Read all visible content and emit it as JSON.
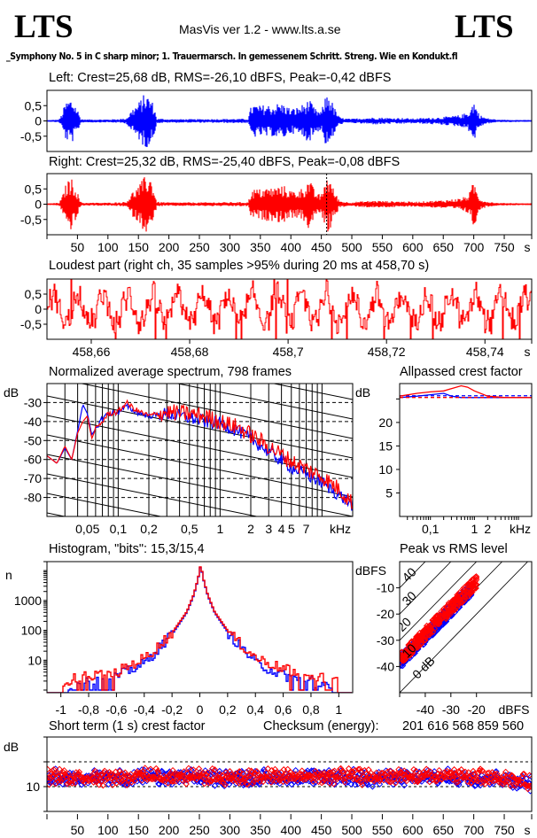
{
  "header": {
    "logo_left": "LTS",
    "logo_right": "LTS",
    "app_title": "MasVis ver 1.2 - www.lts.a.se",
    "file_name": "_Symphony No. 5 in C sharp minor; 1. Trauermarsch. In gemessenem Schritt. Streng. Wie en Kondukt.fl"
  },
  "colors": {
    "left": "#0000ff",
    "right": "#ff0000",
    "frame": "#000000",
    "background": "#ffffff"
  },
  "chart_data": [
    {
      "id": "left-waveform",
      "type": "line",
      "title": "Left: Crest=25,68 dB, RMS=-26,10 dBFS, Peak=-0,42 dBFS",
      "series": [
        {
          "name": "Left",
          "color": "#0000ff",
          "envelope": {
            "x": [
              0,
              20,
              25,
              30,
              35,
              40,
              45,
              50,
              55,
              60,
              100,
              130,
              140,
              150,
              160,
              165,
              170,
              175,
              180,
              200,
              250,
              300,
              330,
              335,
              340,
              350,
              360,
              370,
              380,
              390,
              400,
              410,
              420,
              430,
              440,
              450,
              455,
              460,
              465,
              470,
              475,
              480,
              490,
              500,
              520,
              540,
              560,
              580,
              600,
              640,
              660,
              680,
              690,
              695,
              700,
              705,
              710,
              720,
              740,
              760,
              780,
              795
            ],
            "amp": [
              0.02,
              0.05,
              0.25,
              0.6,
              0.7,
              0.75,
              0.6,
              0.4,
              0.08,
              0.05,
              0.05,
              0.08,
              0.4,
              0.6,
              0.9,
              0.85,
              0.75,
              0.55,
              0.08,
              0.06,
              0.06,
              0.07,
              0.07,
              0.5,
              0.55,
              0.5,
              0.55,
              0.5,
              0.6,
              0.55,
              0.4,
              0.45,
              0.55,
              0.7,
              0.4,
              0.3,
              0.7,
              0.95,
              0.8,
              0.5,
              0.3,
              0.12,
              0.08,
              0.07,
              0.1,
              0.12,
              0.1,
              0.1,
              0.08,
              0.12,
              0.15,
              0.2,
              0.3,
              0.4,
              0.7,
              0.4,
              0.2,
              0.1,
              0.04,
              0.04,
              0.03,
              0.03
            ]
          }
        }
      ],
      "yticks": [
        "0,5",
        "0",
        "-0,5"
      ],
      "ylim": [
        -1,
        1
      ],
      "xlim": [
        0,
        795
      ]
    },
    {
      "id": "right-waveform",
      "type": "line",
      "title": "Right: Crest=25,32 dB, RMS=-25,40 dBFS, Peak=-0,08 dBFS",
      "series": [
        {
          "name": "Right",
          "color": "#ff0000",
          "envelope": {
            "x": [
              0,
              20,
              25,
              30,
              35,
              40,
              45,
              50,
              55,
              60,
              100,
              130,
              140,
              150,
              160,
              165,
              170,
              175,
              180,
              200,
              250,
              300,
              330,
              335,
              340,
              350,
              360,
              370,
              380,
              390,
              400,
              410,
              420,
              430,
              440,
              450,
              455,
              460,
              465,
              470,
              475,
              480,
              490,
              500,
              520,
              540,
              560,
              580,
              600,
              640,
              660,
              680,
              690,
              695,
              700,
              705,
              710,
              720,
              740,
              760,
              780,
              795
            ],
            "amp": [
              0.02,
              0.05,
              0.25,
              0.6,
              0.8,
              0.85,
              0.7,
              0.4,
              0.08,
              0.05,
              0.05,
              0.08,
              0.4,
              0.6,
              0.9,
              0.95,
              0.9,
              0.55,
              0.08,
              0.06,
              0.06,
              0.07,
              0.07,
              0.45,
              0.5,
              0.5,
              0.55,
              0.55,
              0.6,
              0.6,
              0.45,
              0.45,
              0.55,
              0.85,
              0.4,
              0.3,
              0.7,
              0.99,
              0.8,
              0.5,
              0.3,
              0.12,
              0.08,
              0.07,
              0.1,
              0.12,
              0.1,
              0.1,
              0.08,
              0.12,
              0.15,
              0.2,
              0.3,
              0.45,
              0.8,
              0.45,
              0.2,
              0.1,
              0.04,
              0.04,
              0.03,
              0.03
            ]
          }
        }
      ],
      "loudest_marker_s": 458.7,
      "yticks": [
        "0,5",
        "0",
        "-0,5"
      ],
      "ylim": [
        -1,
        1
      ],
      "xticks": [
        50,
        100,
        150,
        200,
        250,
        300,
        350,
        400,
        450,
        500,
        550,
        600,
        650,
        700,
        750
      ],
      "xtick_labels": [
        "50",
        "100",
        "150",
        "200",
        "250",
        "300",
        "350",
        "400",
        "450",
        "500",
        "550",
        "600",
        "650",
        "700",
        "750"
      ],
      "xunit": "s",
      "xlim": [
        0,
        795
      ]
    },
    {
      "id": "loudest-part",
      "type": "line",
      "title": "Loudest part (right ch, 35 samples >95% during 20 ms at 458,70 s)",
      "series": [
        {
          "name": "Right",
          "color": "#ff0000"
        }
      ],
      "yticks": [
        "0,5",
        "0",
        "-0,5"
      ],
      "ylim": [
        -1,
        1
      ],
      "xticks": [
        458.66,
        458.68,
        458.7,
        458.72,
        458.74
      ],
      "xtick_labels": [
        "458,66",
        "458,68",
        "458,7",
        "458,72",
        "458,74"
      ],
      "xunit": "s",
      "xlim": [
        458.651,
        458.7495
      ]
    },
    {
      "id": "spectrum",
      "type": "line",
      "title": "Normalized average spectrum, 798 frames",
      "ylabel": "dB",
      "yticks": [
        -30,
        -40,
        -50,
        -60,
        -70,
        -80
      ],
      "ytick_labels": [
        "-30",
        "-40",
        "-50",
        "-60",
        "-70",
        "-80"
      ],
      "ylim": [
        -90,
        -20
      ],
      "xscale": "log",
      "xlim_khz": [
        0.02,
        20
      ],
      "xticks_khz": [
        0.05,
        0.1,
        0.2,
        0.5,
        1,
        2,
        3,
        4,
        5,
        7
      ],
      "xtick_labels": [
        "0,05",
        "0,1",
        "0,2",
        "0,5",
        "1",
        "2",
        "3",
        "4",
        "5",
        "7"
      ],
      "xunit": "kHz",
      "series": [
        {
          "name": "Left",
          "color": "#0000ff",
          "x_khz": [
            0.02,
            0.025,
            0.03,
            0.035,
            0.04,
            0.045,
            0.05,
            0.055,
            0.06,
            0.07,
            0.08,
            0.1,
            0.12,
            0.15,
            0.2,
            0.3,
            0.5,
            0.7,
            1,
            1.5,
            2,
            3,
            5,
            7,
            10,
            15,
            20
          ],
          "db": [
            -58,
            -62,
            -54,
            -60,
            -45,
            -31,
            -36,
            -47,
            -44,
            -38,
            -36,
            -35,
            -32,
            -35,
            -37,
            -36,
            -38,
            -40,
            -41,
            -45,
            -49,
            -56,
            -64,
            -68,
            -72,
            -79,
            -84
          ]
        },
        {
          "name": "Right",
          "color": "#ff0000",
          "x_khz": [
            0.02,
            0.025,
            0.03,
            0.035,
            0.04,
            0.045,
            0.05,
            0.055,
            0.06,
            0.07,
            0.08,
            0.1,
            0.12,
            0.15,
            0.2,
            0.3,
            0.5,
            0.7,
            1,
            1.5,
            2,
            3,
            5,
            7,
            10,
            15,
            20
          ],
          "db": [
            -58,
            -62,
            -53,
            -60,
            -46,
            -40,
            -37,
            -49,
            -44,
            -40,
            -36,
            -35,
            -30,
            -34,
            -37,
            -35,
            -36,
            -37,
            -40,
            -43,
            -47,
            -53,
            -61,
            -65,
            -69,
            -76,
            -83
          ]
        }
      ]
    },
    {
      "id": "allpassed-crest",
      "type": "line",
      "title": "Allpassed crest factor",
      "ylabel": "dB",
      "yticks": [
        5,
        10,
        15,
        20
      ],
      "ytick_labels": [
        "5",
        "10",
        "15",
        "20"
      ],
      "ylim": [
        0,
        27
      ],
      "xscale": "log",
      "xtick_labels": [
        "0,1",
        "1",
        "2",
        "kHz"
      ],
      "series": [
        {
          "name": "Left",
          "color": "#0000ff",
          "x_khz": [
            0.02,
            0.05,
            0.1,
            0.2,
            0.3,
            0.5,
            1,
            2,
            5,
            10,
            20
          ],
          "db": [
            25.3,
            25.6,
            25.9,
            26.2,
            25.6,
            25.3,
            25.3,
            25.3,
            25.3,
            25.3,
            25.3
          ],
          "reference_db": 25.68
        },
        {
          "name": "Right",
          "color": "#ff0000",
          "x_khz": [
            0.02,
            0.05,
            0.1,
            0.2,
            0.3,
            0.5,
            0.7,
            1,
            2,
            5,
            10,
            20
          ],
          "db": [
            25.6,
            26.2,
            26.5,
            26.7,
            27.2,
            27.8,
            27.5,
            26.7,
            25.6,
            25.3,
            25.3,
            25.3
          ],
          "reference_db": 25.32
        }
      ]
    },
    {
      "id": "histogram",
      "type": "line",
      "title": "Histogram, \"bits\": 15,3/15,4",
      "ylabel": "n",
      "yscale": "log",
      "yticks": [
        10,
        100,
        1000
      ],
      "ytick_labels": [
        "10",
        "100",
        "1000"
      ],
      "ylim": [
        1,
        20000
      ],
      "xticks": [
        -1,
        -0.8,
        -0.6,
        -0.4,
        -0.2,
        0,
        0.2,
        0.4,
        0.6,
        0.8,
        1
      ],
      "xtick_labels": [
        "-1",
        "-0,8",
        "-0,6",
        "-0,4",
        "-0,2",
        "0",
        "0,2",
        "0,4",
        "0,6",
        "0,8",
        "1"
      ],
      "xlim": [
        -1.1,
        1.1
      ],
      "series": [
        {
          "name": "Left",
          "color": "#0000ff",
          "x": [
            -0.95,
            -0.8,
            -0.6,
            -0.4,
            -0.3,
            -0.2,
            -0.1,
            -0.05,
            -0.02,
            0,
            0.02,
            0.05,
            0.1,
            0.2,
            0.3,
            0.4,
            0.6,
            0.8,
            0.95
          ],
          "n": [
            1,
            2,
            3,
            8,
            25,
            80,
            400,
            1500,
            5000,
            15000,
            5000,
            1500,
            400,
            80,
            25,
            8,
            3,
            2,
            1
          ]
        },
        {
          "name": "Right",
          "color": "#ff0000",
          "x": [
            -0.99,
            -0.8,
            -0.6,
            -0.4,
            -0.3,
            -0.2,
            -0.1,
            -0.05,
            -0.02,
            0,
            0.02,
            0.05,
            0.1,
            0.2,
            0.3,
            0.4,
            0.6,
            0.8,
            0.99
          ],
          "n": [
            2,
            3,
            4,
            12,
            30,
            90,
            420,
            1600,
            5200,
            16000,
            5200,
            1600,
            420,
            90,
            30,
            12,
            5,
            3,
            2
          ]
        }
      ]
    },
    {
      "id": "peak-vs-rms",
      "type": "scatter",
      "title": "Peak vs RMS level",
      "ylabel": "dBFS",
      "xlabel": "dBFS",
      "xticks": [
        -40,
        -30,
        -20
      ],
      "xtick_labels": [
        "-40",
        "-30",
        "-20"
      ],
      "yticks": [
        -10,
        -20,
        -30,
        -40
      ],
      "ytick_labels": [
        "-10",
        "-20",
        "-30",
        "-40"
      ],
      "xlim": [
        -50,
        0
      ],
      "ylim": [
        -50,
        0
      ],
      "crest_lines_db": [
        0,
        10,
        20,
        30,
        40
      ],
      "crest_line_labels": [
        "0 dB",
        "10",
        "20",
        "30",
        "40"
      ],
      "series": [
        {
          "name": "Left",
          "color": "#0000ff",
          "rms_range": [
            -50,
            -22
          ],
          "crest_range": [
            9,
            14
          ]
        },
        {
          "name": "Right",
          "color": "#ff0000",
          "rms_range": [
            -50,
            -20
          ],
          "crest_range": [
            10,
            15
          ]
        }
      ]
    },
    {
      "id": "short-term-crest",
      "type": "scatter",
      "title": "Short term (1 s) crest factor",
      "ylabel": "dB",
      "yticks": [
        10
      ],
      "ytick_labels": [
        "10"
      ],
      "ylim": [
        5,
        20
      ],
      "reference_lines_db": [
        10,
        15
      ],
      "xticks": [
        50,
        100,
        150,
        200,
        250,
        300,
        350,
        400,
        450,
        500,
        550,
        600,
        650,
        700,
        750
      ],
      "xtick_labels": [
        "50",
        "100",
        "150",
        "200",
        "250",
        "300",
        "350",
        "400",
        "450",
        "500",
        "550",
        "600",
        "650",
        "700",
        "750"
      ],
      "xunit": "s",
      "xlim": [
        0,
        795
      ],
      "series": [
        {
          "name": "Left",
          "color": "#0000ff",
          "mean_db": 11.8,
          "spread_db": 1.3
        },
        {
          "name": "Right",
          "color": "#ff0000",
          "mean_db": 12.0,
          "spread_db": 1.3
        }
      ]
    }
  ],
  "checksum": {
    "label": "Checksum (energy):",
    "value": "201 616 568 859 560"
  }
}
